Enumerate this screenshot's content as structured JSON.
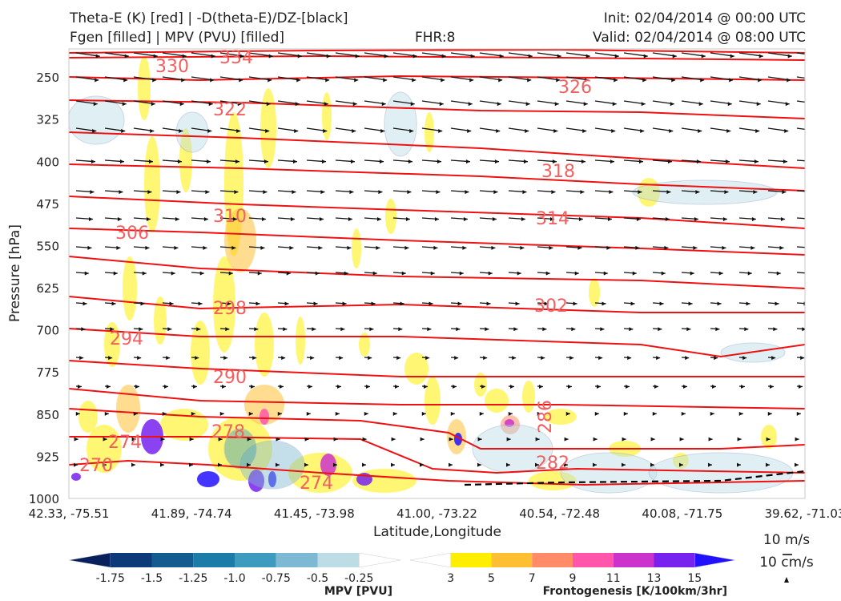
{
  "header": {
    "title_line1": "Theta-E (K) [red] | -D(theta-E)/DZ-[black]",
    "title_line2": "Fgen [filled] | MPV (PVU) [filled]",
    "fhr": "FHR:8",
    "init": "Init: 02/04/2014 @ 00:00 UTC",
    "valid": "Valid: 02/04/2014 @ 08:00 UTC"
  },
  "chart_data": {
    "type": "cross-section",
    "xlabel": "Latitude,Longitude",
    "ylabel": "Pressure [hPa]",
    "x_ticks": [
      "42.33, -75.51",
      "41.89, -74.74",
      "41.45, -73.98",
      "41.00, -73.22",
      "40.54, -72.48",
      "40.08, -71.75",
      "39.62, -71.03"
    ],
    "y_ticks": [
      250,
      325,
      400,
      475,
      550,
      625,
      700,
      775,
      850,
      925,
      1000
    ],
    "ylim": [
      1000,
      200
    ],
    "y_inverted": true,
    "theta_e_labels": [
      "330",
      "334",
      "326",
      "322",
      "318",
      "310",
      "314",
      "306",
      "302",
      "298",
      "294",
      "290",
      "286",
      "278",
      "274",
      "282",
      "270",
      "274"
    ],
    "theta_e_color": "#ee1111",
    "vector_color": "#111111",
    "reference_vectors": [
      "10 m/s",
      "10 cm/s"
    ],
    "colorbars": [
      {
        "name": "MPV [PVU]",
        "ticks": [
          "-1.75",
          "-1.5",
          "-1.25",
          "-1.0",
          "-0.75",
          "-0.5",
          "-0.25"
        ],
        "colors": [
          "#08205c",
          "#0d3b7a",
          "#145c90",
          "#1b7ca8",
          "#3c9bbf",
          "#7db9d2",
          "#bcdce6",
          "#ffffff"
        ]
      },
      {
        "name": "Frontogenesis [K/100km/3hr]",
        "ticks": [
          "3",
          "5",
          "7",
          "9",
          "11",
          "13",
          "15"
        ],
        "colors": [
          "#ffffff",
          "#ffee00",
          "#ffbf33",
          "#ff8c66",
          "#ff55aa",
          "#cc33cc",
          "#7722ee",
          "#2211ff"
        ]
      }
    ]
  }
}
